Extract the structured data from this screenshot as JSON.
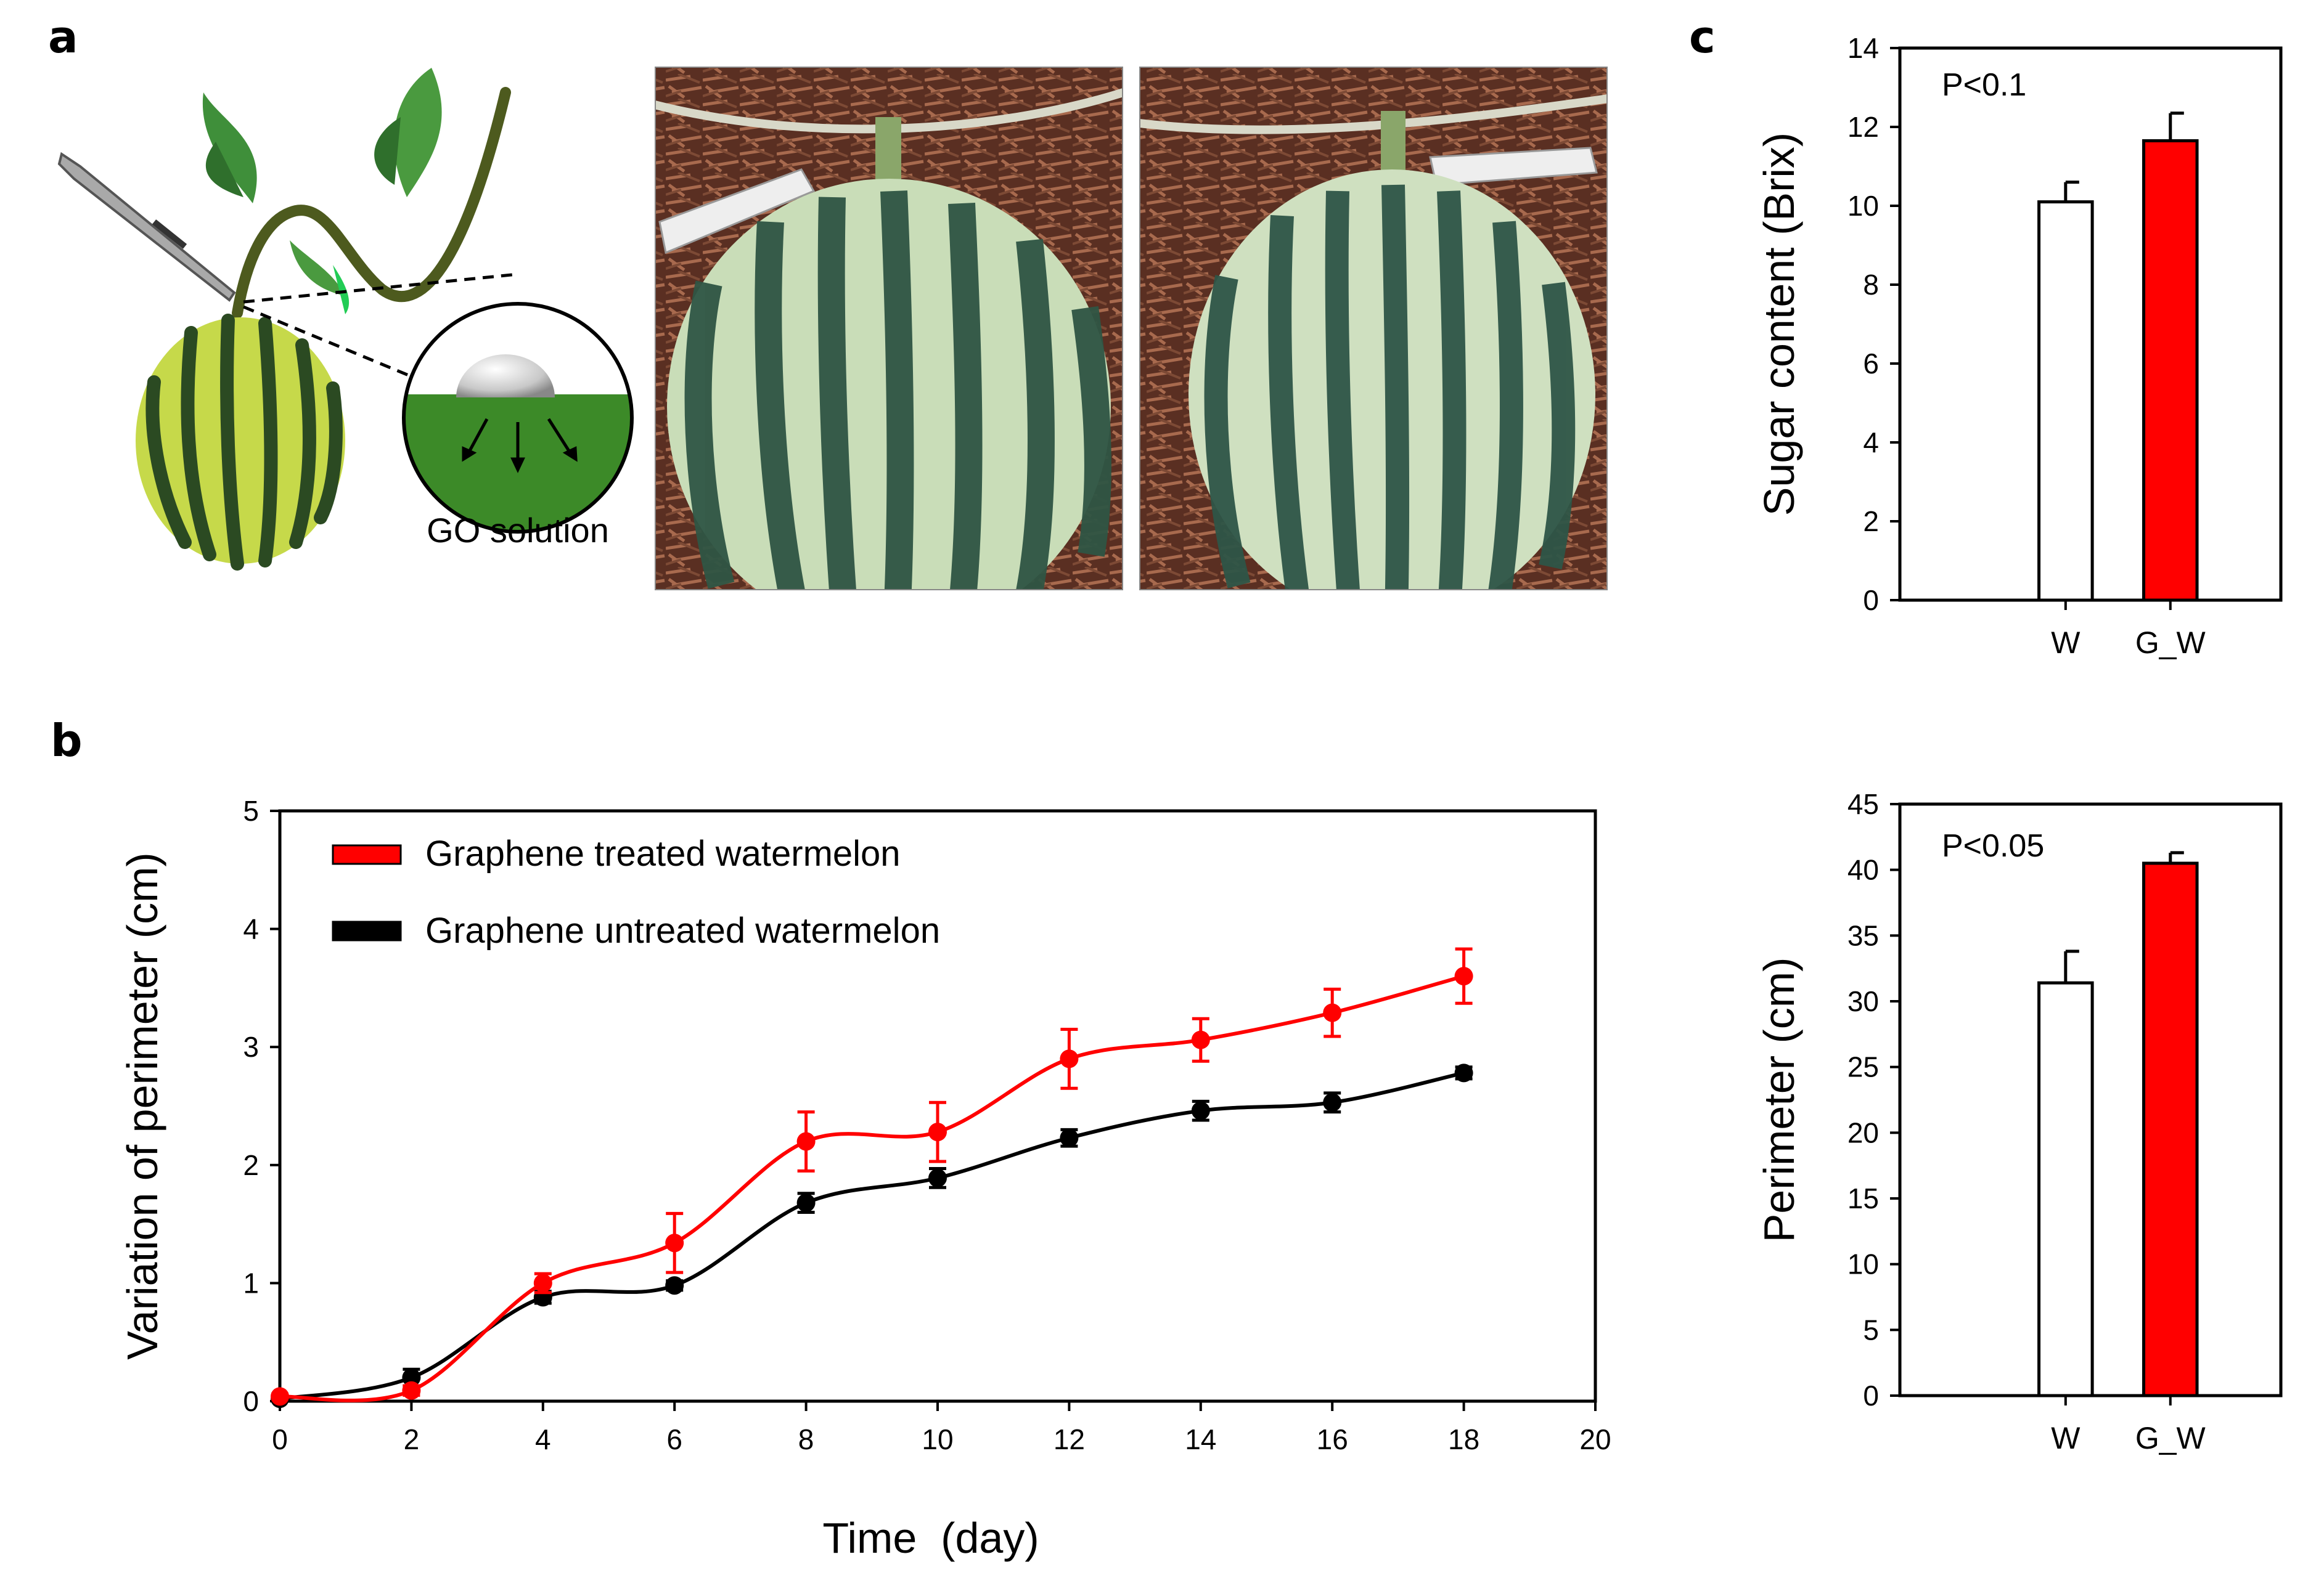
{
  "panels": {
    "a": "a",
    "b": "b",
    "c": "c"
  },
  "illustration": {
    "label": "GO solution"
  },
  "colors": {
    "treated": "#ff0000",
    "untreated": "#000000",
    "bar_W": "#ffffff",
    "bar_GW": "#ff0000",
    "leaf": "#3a8a3a",
    "vine": "#4d5a1e",
    "melon_light": "#c5d8a8",
    "melon_dark": "#2e4a36",
    "soil": "#6b3a2a"
  },
  "chart_data": [
    {
      "id": "b",
      "type": "line",
      "xlabel": "Time  (day)",
      "ylabel": "Variation of perimeter (cm)",
      "xlim": [
        0,
        20
      ],
      "ylim": [
        0,
        5
      ],
      "xticks": [
        0,
        2,
        4,
        6,
        8,
        10,
        12,
        14,
        16,
        18,
        20
      ],
      "yticks": [
        0,
        1,
        2,
        3,
        4,
        5
      ],
      "legend_position": "top-left",
      "series": [
        {
          "name": "Graphene treated watermelon",
          "color": "#ff0000",
          "x": [
            0,
            2,
            4,
            6,
            8,
            10,
            12,
            14,
            16,
            18
          ],
          "y": [
            0.04,
            0.09,
            1.0,
            1.34,
            2.2,
            2.28,
            2.9,
            3.06,
            3.29,
            3.6
          ],
          "err": [
            0.02,
            0.04,
            0.08,
            0.25,
            0.25,
            0.25,
            0.25,
            0.18,
            0.2,
            0.23
          ]
        },
        {
          "name": "Graphene untreated watermelon",
          "color": "#000000",
          "x": [
            0,
            2,
            4,
            6,
            8,
            10,
            12,
            14,
            16,
            18
          ],
          "y": [
            0.02,
            0.2,
            0.88,
            0.98,
            1.68,
            1.89,
            2.23,
            2.46,
            2.53,
            2.78
          ],
          "err": [
            0.02,
            0.07,
            0.05,
            0.04,
            0.08,
            0.08,
            0.07,
            0.08,
            0.08,
            0.05
          ]
        }
      ]
    },
    {
      "id": "c_top",
      "type": "bar",
      "ylabel": "Sugar content (Brix)",
      "annotation": "P<0.1",
      "categories": [
        "W",
        "G_W"
      ],
      "values": [
        10.1,
        11.65
      ],
      "err": [
        0.5,
        0.7
      ],
      "ylim": [
        0,
        14
      ],
      "yticks": [
        0,
        2,
        4,
        6,
        8,
        10,
        12,
        14
      ]
    },
    {
      "id": "c_bottom",
      "type": "bar",
      "ylabel": "Perimeter (cm)",
      "annotation": "P<0.05",
      "categories": [
        "W",
        "G_W"
      ],
      "values": [
        31.4,
        40.5
      ],
      "err": [
        2.4,
        0.8
      ],
      "ylim": [
        0,
        45
      ],
      "yticks": [
        0,
        5,
        10,
        15,
        20,
        25,
        30,
        35,
        40,
        45
      ]
    }
  ]
}
